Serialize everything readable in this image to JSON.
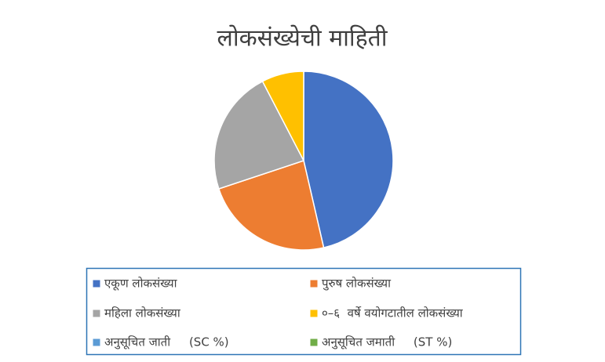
{
  "chart_data": {
    "type": "pie",
    "title": "लोकसंख्येची माहिती",
    "categories": [
      "एकूण लोकसंख्या",
      "पुरुष लोकसंख्या",
      "महिला लोकसंख्या",
      "०–६  वर्षे वयोगटातील लोकसंख्या",
      "अनुसूचित जाती     (SC %)",
      "अनुसूचित जमाती     (ST %)"
    ],
    "values": [
      1000,
      506,
      485,
      164,
      0,
      0
    ],
    "colors": [
      "#4472c4",
      "#ed7d31",
      "#a5a5a5",
      "#ffc000",
      "#5b9bd5",
      "#70ad47"
    ],
    "legend": "bottom"
  }
}
